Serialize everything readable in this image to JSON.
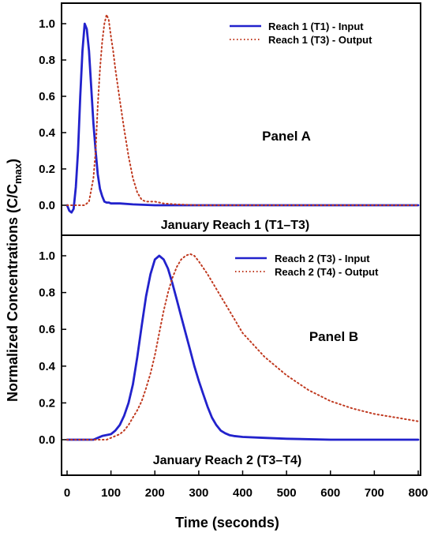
{
  "chart_data": {
    "type": "line",
    "y_axis_label": "Normalized Concentrations (C/C",
    "y_axis_label_sub": "max",
    "y_axis_label_close": ")",
    "x_axis_label": "Time (seconds)",
    "xlim": [
      0,
      800
    ],
    "x_ticks": [
      "0",
      "100",
      "200",
      "300",
      "400",
      "500",
      "600",
      "700",
      "800"
    ],
    "y_ticks": [
      "0.0",
      "0.2",
      "0.4",
      "0.6",
      "0.8",
      "1.0"
    ],
    "panels": [
      {
        "panel_label": "Panel A",
        "caption": "January Reach 1 (T1–T3)",
        "ylim": [
          -0.05,
          1.07
        ],
        "series": [
          {
            "name": "Reach 1 (T1) - Input",
            "color": "#2222cc",
            "style": "solid",
            "x": [
              0,
              5,
              10,
              15,
              20,
              25,
              30,
              35,
              40,
              45,
              50,
              55,
              60,
              65,
              70,
              75,
              80,
              85,
              90,
              95,
              100,
              120,
              150,
              200,
              300,
              400,
              500,
              600,
              700,
              800
            ],
            "y": [
              0.0,
              -0.03,
              -0.04,
              -0.02,
              0.1,
              0.3,
              0.6,
              0.85,
              1.0,
              0.97,
              0.85,
              0.65,
              0.45,
              0.3,
              0.17,
              0.09,
              0.05,
              0.02,
              0.015,
              0.015,
              0.01,
              0.01,
              0.005,
              0.0,
              0.0,
              0.0,
              0.0,
              0.0,
              0.0,
              0.0
            ]
          },
          {
            "name": "Reach 1 (T3) - Output",
            "color": "#c03a20",
            "style": "dotted",
            "x": [
              0,
              40,
              50,
              60,
              65,
              70,
              75,
              80,
              85,
              90,
              95,
              100,
              105,
              110,
              120,
              130,
              140,
              150,
              160,
              170,
              180,
              200,
              220,
              250,
              300,
              400,
              500,
              600,
              700,
              800
            ],
            "y": [
              0.0,
              0.0,
              0.02,
              0.15,
              0.3,
              0.55,
              0.75,
              0.9,
              1.0,
              1.05,
              1.02,
              0.93,
              0.85,
              0.75,
              0.58,
              0.42,
              0.27,
              0.15,
              0.07,
              0.03,
              0.02,
              0.02,
              0.01,
              0.005,
              0.0,
              0.0,
              0.0,
              0.0,
              0.0,
              0.0
            ]
          }
        ]
      },
      {
        "panel_label": "Panel B",
        "caption": "January Reach 2 (T3–T4)",
        "ylim": [
          -0.05,
          1.07
        ],
        "series": [
          {
            "name": "Reach 2 (T3) - Input",
            "color": "#2222cc",
            "style": "solid",
            "x": [
              0,
              60,
              80,
              100,
              110,
              120,
              130,
              140,
              150,
              160,
              170,
              180,
              190,
              200,
              210,
              220,
              230,
              240,
              250,
              260,
              270,
              280,
              290,
              300,
              310,
              320,
              330,
              340,
              350,
              360,
              370,
              380,
              400,
              450,
              500,
              600,
              800
            ],
            "y": [
              0.0,
              0.0,
              0.02,
              0.03,
              0.05,
              0.08,
              0.13,
              0.2,
              0.3,
              0.45,
              0.62,
              0.78,
              0.9,
              0.98,
              1.0,
              0.98,
              0.93,
              0.85,
              0.76,
              0.67,
              0.58,
              0.49,
              0.4,
              0.32,
              0.25,
              0.18,
              0.12,
              0.08,
              0.05,
              0.035,
              0.025,
              0.02,
              0.015,
              0.01,
              0.005,
              0.0,
              0.0
            ]
          },
          {
            "name": "Reach 2 (T4) - Output",
            "color": "#c03a20",
            "style": "dotted",
            "x": [
              0,
              90,
              100,
              110,
              120,
              130,
              140,
              150,
              160,
              170,
              180,
              190,
              200,
              210,
              220,
              230,
              240,
              250,
              260,
              270,
              280,
              290,
              300,
              320,
              340,
              360,
              380,
              400,
              450,
              500,
              550,
              600,
              650,
              700,
              750,
              800
            ],
            "y": [
              0.0,
              0.0,
              0.01,
              0.02,
              0.03,
              0.05,
              0.08,
              0.12,
              0.16,
              0.21,
              0.28,
              0.36,
              0.46,
              0.58,
              0.7,
              0.8,
              0.88,
              0.94,
              0.98,
              1.0,
              1.01,
              1.0,
              0.97,
              0.9,
              0.82,
              0.74,
              0.66,
              0.58,
              0.45,
              0.35,
              0.27,
              0.21,
              0.17,
              0.14,
              0.12,
              0.1
            ]
          }
        ]
      }
    ]
  }
}
